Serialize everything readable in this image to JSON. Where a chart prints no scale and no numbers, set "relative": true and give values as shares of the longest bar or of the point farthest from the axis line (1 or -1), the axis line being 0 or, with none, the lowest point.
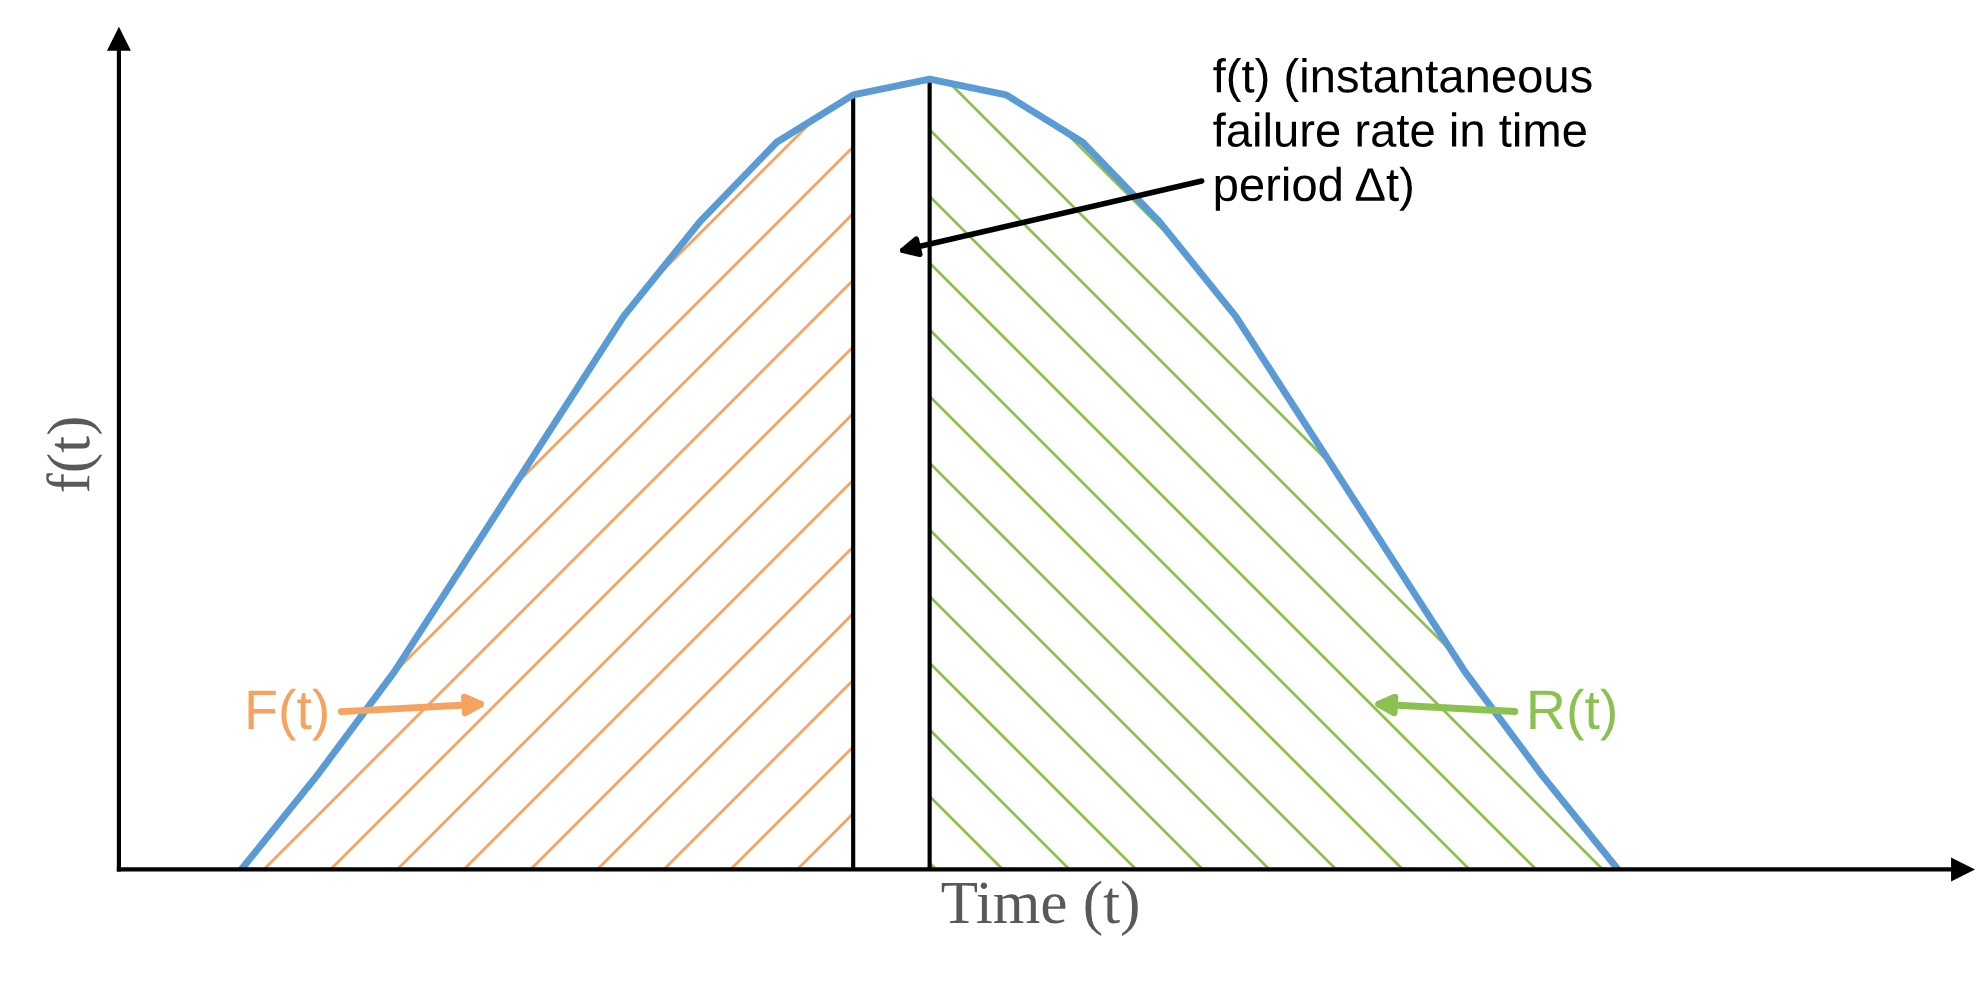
{
  "chart_data": {
    "type": "area",
    "relative": true,
    "xlabel": "Time (t)",
    "ylabel": "f(t)",
    "categories": [
      null,
      null,
      null,
      null,
      null,
      null,
      null,
      null,
      null,
      null,
      null,
      null,
      null,
      null,
      null,
      null,
      null,
      null,
      null,
      null,
      null
    ],
    "series": [
      {
        "name": "F(t)",
        "color": "#f4a460",
        "values": [
          null,
          0,
          0.12,
          0.25,
          0.4,
          0.55,
          0.7,
          0.82,
          0.92,
          0.98,
          null,
          null,
          null,
          null,
          null,
          null,
          null,
          null,
          null,
          null,
          null
        ]
      },
      {
        "name": "R(t)",
        "color": "#8cc152",
        "values": [
          null,
          null,
          null,
          null,
          null,
          null,
          null,
          null,
          null,
          null,
          1,
          0.98,
          0.92,
          0.82,
          0.7,
          0.55,
          0.4,
          0.25,
          0.12,
          0,
          null
        ]
      },
      {
        "type": "line",
        "color": "#5b9bd5",
        "values": [
          null,
          0,
          0.12,
          0.25,
          0.4,
          0.55,
          0.7,
          0.82,
          0.92,
          0.98,
          1,
          0.98,
          0.92,
          0.82,
          0.7,
          0.55,
          0.4,
          0.25,
          0.12,
          0,
          null
        ]
      }
    ],
    "annotations": [
      "f(t) (instantaneous\nfailure rate in time\nperiod Δt)"
    ]
  }
}
